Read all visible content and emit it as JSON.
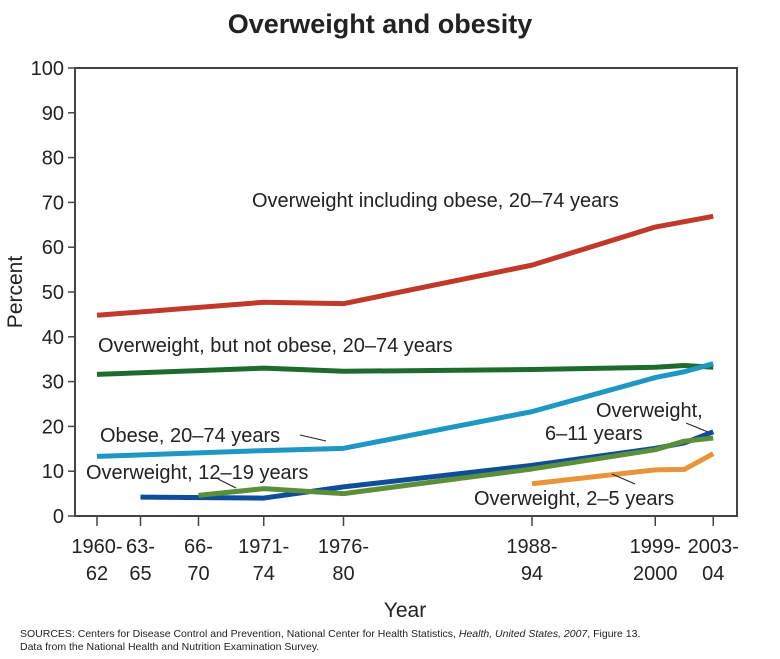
{
  "chart_data": {
    "type": "line",
    "title": "Overweight and obesity",
    "xlabel": "Year",
    "ylabel": "Percent",
    "ylim": [
      0,
      100
    ],
    "yticks": [
      0,
      10,
      20,
      30,
      40,
      50,
      60,
      70,
      80,
      90,
      100
    ],
    "grid": false,
    "xticks": [
      {
        "x": 1961,
        "label": [
          "1960-",
          "62"
        ]
      },
      {
        "x": 1964,
        "label": [
          "63-",
          "65"
        ]
      },
      {
        "x": 1968,
        "label": [
          "66-",
          "70"
        ]
      },
      {
        "x": 1972.5,
        "label": [
          "1971-",
          "74"
        ]
      },
      {
        "x": 1978,
        "label": [
          "1976-",
          "80"
        ]
      },
      {
        "x": 1991,
        "label": [
          "1988-",
          "94"
        ]
      },
      {
        "x": 1999.5,
        "label": [
          "1999-",
          "2000"
        ]
      },
      {
        "x": 2003.5,
        "label": [
          "2003-",
          "04"
        ]
      }
    ],
    "series": [
      {
        "name": "Overweight including obese, 20–74 years",
        "color": "#c0392b",
        "x": [
          1961,
          1972.5,
          1978,
          1991,
          1999.5,
          2001.5,
          2003.5
        ],
        "y": [
          44.8,
          47.7,
          47.4,
          56.0,
          64.5,
          65.7,
          66.9
        ]
      },
      {
        "name": "Overweight, but not obese, 20–74 years",
        "color": "#1e6b2e",
        "x": [
          1961,
          1972.5,
          1978,
          1991,
          1999.5,
          2001.5,
          2003.5
        ],
        "y": [
          31.6,
          33.0,
          32.3,
          32.7,
          33.2,
          33.6,
          33.2
        ]
      },
      {
        "name": "Obese, 20–74 years",
        "color": "#1f97c4",
        "x": [
          1961,
          1972.5,
          1978,
          1991,
          1999.5,
          2001.5,
          2003.5
        ],
        "y": [
          13.3,
          14.6,
          15.1,
          23.3,
          30.9,
          32.2,
          34.0
        ]
      },
      {
        "name": "Overweight, 6–11 years",
        "color": "#0e4d9a",
        "x": [
          1964,
          1972.5,
          1978,
          1991,
          1999.5,
          2001.5,
          2003.5
        ],
        "y": [
          4.2,
          4.0,
          6.5,
          11.3,
          15.1,
          16.3,
          18.8
        ]
      },
      {
        "name": "Overweight, 12–19 years",
        "color": "#5b8f3a",
        "x": [
          1968,
          1972.5,
          1978,
          1991,
          1999.5,
          2001.5,
          2003.5
        ],
        "y": [
          4.6,
          6.1,
          5.0,
          10.5,
          14.8,
          16.7,
          17.4
        ]
      },
      {
        "name": "Overweight, 2–5 years",
        "color": "#e8943a",
        "x": [
          1991,
          1999.5,
          2001.5,
          2003.5
        ],
        "y": [
          7.2,
          10.3,
          10.4,
          13.9
        ]
      }
    ],
    "annotations": {
      "s0": "Overweight including obese, 20–74 years",
      "s1": "Overweight, but not obese, 20–74 years",
      "s2": "Obese, 20–74 years",
      "s3a": "Overweight,",
      "s3b": "6–11 years",
      "s4": "Overweight, 12–19 years",
      "s5": "Overweight, 2–5 years"
    }
  },
  "source": {
    "prefix": "SOURCES: Centers for Disease Control and Prevention, National Center for Health Statistics, ",
    "italic": "Health, United States, 2007",
    "suffix": ", Figure 13.",
    "line2": "Data from the National Health and Nutrition Examination Survey."
  }
}
